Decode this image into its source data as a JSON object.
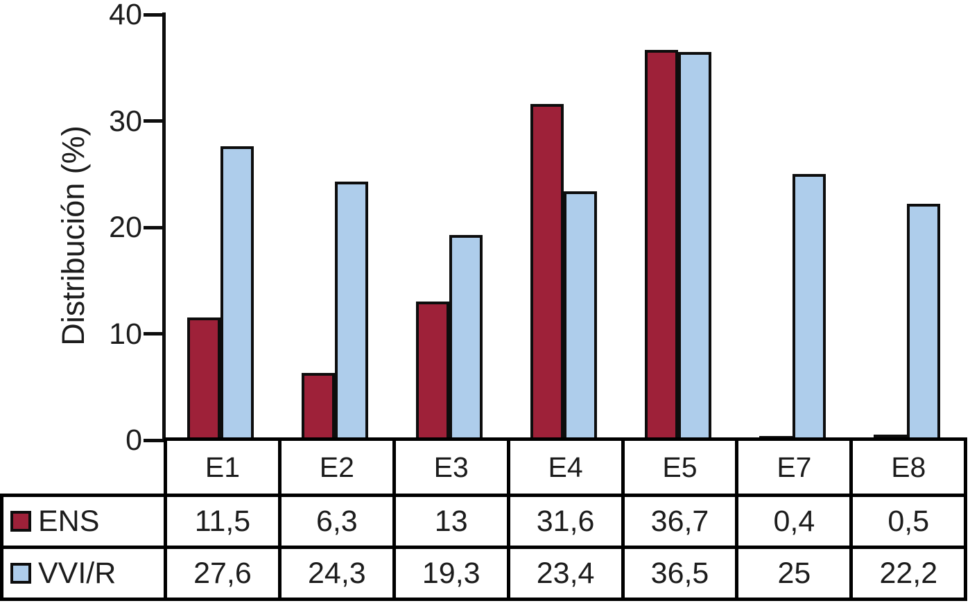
{
  "figure": {
    "y_axis_title": "Distribución (%)"
  },
  "chart_data": {
    "type": "bar",
    "title": "",
    "xlabel": "",
    "ylabel": "Distribución (%)",
    "ylim": [
      0,
      40
    ],
    "yticks": [
      0,
      10,
      20,
      30,
      40
    ],
    "grid": false,
    "legend_position": "table-left",
    "decimal_separator": ",",
    "categories": [
      "E1",
      "E2",
      "E3",
      "E4",
      "E5",
      "E7",
      "E8"
    ],
    "series": [
      {
        "name": "ENS",
        "color": "#9E2139",
        "values": [
          11.5,
          6.3,
          13,
          31.6,
          36.7,
          0.4,
          0.5
        ],
        "labels": [
          "11,5",
          "6,3",
          "13",
          "31,6",
          "36,7",
          "0,4",
          "0,5"
        ]
      },
      {
        "name": "VVI/R",
        "color": "#AECDEB",
        "values": [
          27.6,
          24.3,
          19.3,
          23.4,
          36.5,
          25,
          22.2
        ],
        "labels": [
          "27,6",
          "24,3",
          "19,3",
          "23,4",
          "36,5",
          "25",
          "22,2"
        ]
      }
    ]
  }
}
